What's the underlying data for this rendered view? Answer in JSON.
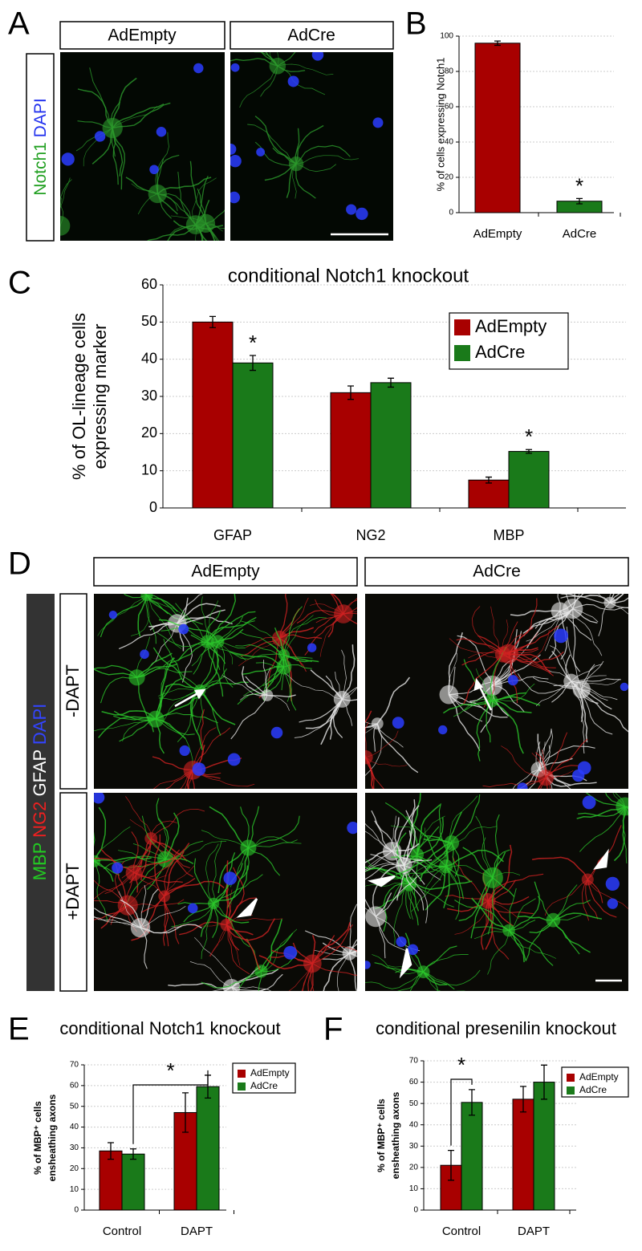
{
  "panel_labels": [
    "A",
    "B",
    "C",
    "D",
    "E",
    "F"
  ],
  "panel_a": {
    "columns": [
      "AdEmpty",
      "AdCre"
    ],
    "stains": [
      {
        "text": "Notch1",
        "color": "#22a022"
      },
      {
        "text": "DAPI",
        "color": "#2030ee"
      }
    ]
  },
  "panel_d": {
    "columns": [
      "AdEmpty",
      "AdCre"
    ],
    "rows": [
      "-DAPT",
      "+DAPT"
    ],
    "stains": [
      {
        "text": "MBP",
        "color": "#22cc22"
      },
      {
        "text": "NG2",
        "color": "#ee2020"
      },
      {
        "text": "GFAP",
        "color": "#ffffff"
      },
      {
        "text": "DAPI",
        "color": "#3344ff"
      }
    ]
  },
  "chart_data": [
    {
      "type": "bar",
      "ylabel": "% of cells expressing Notch1",
      "categories": [
        "AdEmpty",
        "AdCre"
      ],
      "values": [
        96,
        6.5
      ],
      "errors": [
        1.2,
        1.5
      ],
      "colors": [
        "#a80000",
        "#1a7a1a"
      ],
      "ylim": [
        0,
        100
      ],
      "yticks": [
        0,
        20,
        40,
        60,
        80,
        100
      ],
      "grid": true,
      "annotations": [
        "*"
      ]
    },
    {
      "type": "bar",
      "title": "conditional Notch1 knockout",
      "ylabel": [
        "% of OL-lineage cells",
        "expressing marker"
      ],
      "categories": [
        "GFAP",
        "NG2",
        "MBP"
      ],
      "series": [
        {
          "name": "AdEmpty",
          "color": "#a80000",
          "values": [
            50,
            31,
            7.5
          ],
          "errors": [
            1.5,
            1.8,
            0.8
          ]
        },
        {
          "name": "AdCre",
          "color": "#1a7a1a",
          "values": [
            39,
            33.7,
            15.2
          ],
          "errors": [
            2,
            1.2,
            0.5
          ]
        }
      ],
      "ylim": [
        0,
        60
      ],
      "yticks": [
        0,
        10,
        20,
        30,
        40,
        50,
        60
      ],
      "grid": true,
      "legend": "upper right",
      "annotations": [
        "*",
        "*"
      ]
    },
    {
      "type": "bar",
      "title": "conditional Notch1 knockout",
      "ylabel": [
        "% of MBP⁺ cells",
        "ensheathing axons"
      ],
      "categories": [
        "Control",
        "DAPT"
      ],
      "series": [
        {
          "name": "AdEmpty",
          "color": "#a80000",
          "values": [
            28.5,
            47
          ],
          "errors": [
            4,
            9.5
          ]
        },
        {
          "name": "AdCre",
          "color": "#1a7a1a",
          "values": [
            27,
            59.5
          ],
          "errors": [
            2.5,
            5.5
          ]
        }
      ],
      "ylim": [
        0,
        70
      ],
      "yticks": [
        0,
        10,
        20,
        30,
        40,
        50,
        60,
        70
      ],
      "grid": true,
      "legend": "upper right",
      "annotations": [
        "*"
      ]
    },
    {
      "type": "bar",
      "title": "conditional presenilin knockout",
      "ylabel": [
        "% of MBP⁺ cells",
        "ensheathing axons"
      ],
      "categories": [
        "Control",
        "DAPT"
      ],
      "series": [
        {
          "name": "AdEmpty",
          "color": "#a80000",
          "values": [
            21,
            52
          ],
          "errors": [
            7,
            6
          ]
        },
        {
          "name": "AdCre",
          "color": "#1a7a1a",
          "values": [
            50.5,
            60
          ],
          "errors": [
            6,
            8
          ]
        }
      ],
      "ylim": [
        0,
        70
      ],
      "yticks": [
        0,
        10,
        20,
        30,
        40,
        50,
        60,
        70
      ],
      "grid": true,
      "legend": "upper right",
      "annotations": [
        "*"
      ]
    }
  ]
}
